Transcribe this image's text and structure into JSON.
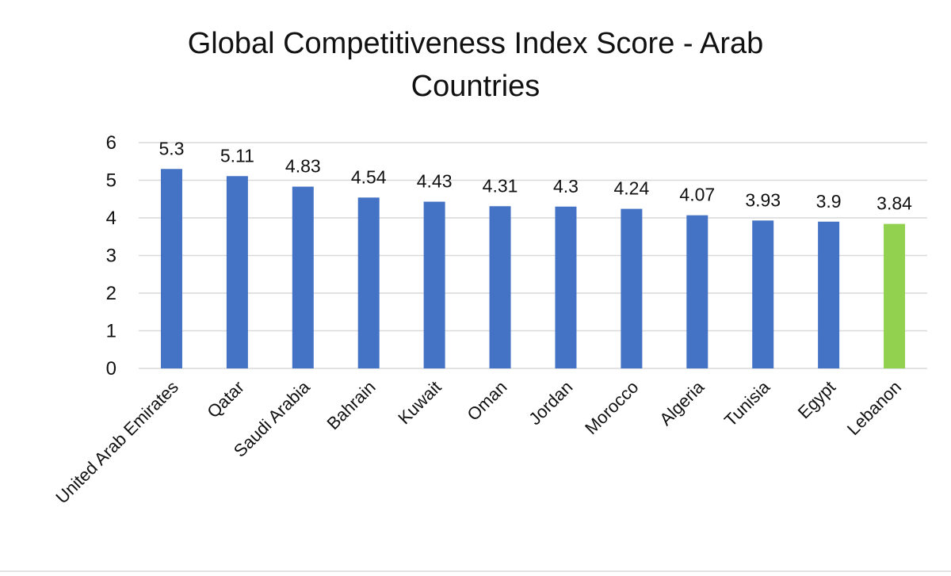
{
  "chart_data": {
    "type": "bar",
    "title_lines": [
      "Global Competitiveness Index Score - Arab",
      "Countries"
    ],
    "xlabel": "",
    "ylabel": "",
    "categories": [
      "United Arab Emirates",
      "Qatar",
      "Saudi Arabia",
      "Bahrain",
      "Kuwait",
      "Oman",
      "Jordan",
      "Morocco",
      "Algeria",
      "Tunisia",
      "Egypt",
      "Lebanon"
    ],
    "values": [
      5.3,
      5.11,
      4.83,
      4.54,
      4.43,
      4.31,
      4.3,
      4.24,
      4.07,
      3.93,
      3.9,
      3.84
    ],
    "data_labels": [
      "5.3",
      "5.11",
      "4.83",
      "4.54",
      "4.43",
      "4.31",
      "4.3",
      "4.24",
      "4.07",
      "3.93",
      "3.9",
      "3.84"
    ],
    "ylim": [
      0,
      6
    ],
    "yticks": [
      "0",
      "1",
      "2",
      "3",
      "4",
      "5",
      "6"
    ],
    "grid": true,
    "legend": "none",
    "colors": {
      "default_bar": "#4472C4",
      "highlight_bar": "#92D050",
      "gridline": "#D9D9D9",
      "text": "#111111"
    },
    "highlight_index": 11
  }
}
